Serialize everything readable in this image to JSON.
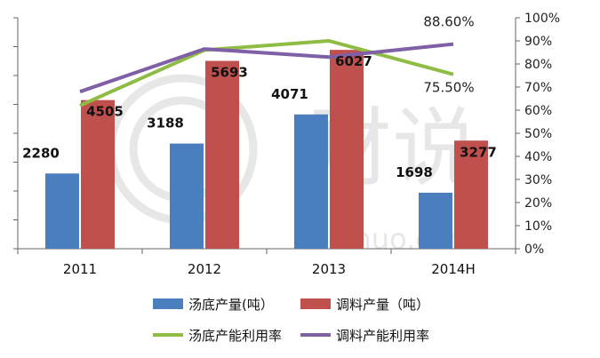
{
  "chart_data": {
    "type": "bar",
    "categories": [
      "2011",
      "2012",
      "2013",
      "2014H"
    ],
    "series": [
      {
        "name": "汤底产量(吨）",
        "kind": "bar",
        "axis": "left",
        "color": "#4a7ebf",
        "values": [
          2280,
          3188,
          4071,
          1698
        ],
        "labels": [
          "2280",
          "3188",
          "4071",
          "1698"
        ]
      },
      {
        "name": "调料产量（吨）",
        "kind": "bar",
        "axis": "left",
        "color": "#c0504d",
        "values": [
          4505,
          5693,
          6027,
          3277
        ],
        "labels": [
          "4505",
          "5693",
          "6027",
          "3277"
        ]
      },
      {
        "name": "汤底产能利用率",
        "kind": "line",
        "axis": "right",
        "color": "#8fbc45",
        "values": [
          0.62,
          0.86,
          0.9,
          0.755
        ],
        "labels": [
          "",
          "",
          "",
          "75.50%"
        ]
      },
      {
        "name": "调料产能利用率",
        "kind": "line",
        "axis": "right",
        "color": "#7f5fa6",
        "values": [
          0.68,
          0.865,
          0.83,
          0.886
        ],
        "labels": [
          "",
          "",
          "",
          "88.60%"
        ]
      }
    ],
    "left_axis": {
      "ylim": [
        0,
        7000
      ],
      "ticks": 8,
      "tick_labels_shown": false
    },
    "right_axis": {
      "ylim": [
        0,
        1
      ],
      "tick_labels": [
        "0%",
        "10%",
        "20%",
        "30%",
        "40%",
        "50%",
        "60%",
        "70%",
        "80%",
        "90%",
        "100%"
      ]
    },
    "legend": "bottom",
    "grid": false
  },
  "watermark": {
    "text": "财说",
    "subtext": "Caishuo.com"
  }
}
